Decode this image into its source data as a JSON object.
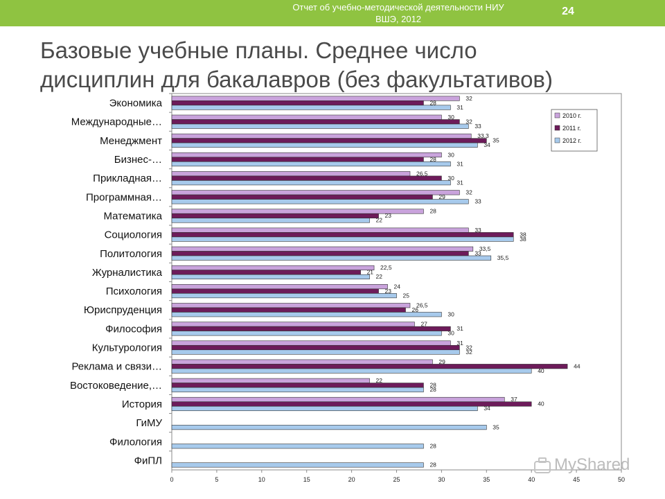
{
  "header": {
    "line1": "Отчет об учебно-методической деятельности НИУ",
    "line2": "ВШЭ, 2012",
    "page_number": "24"
  },
  "title": {
    "line1": "Базовые учебные планы. Среднее число",
    "line2": "дисциплин для бакалавров (без факультативов)"
  },
  "watermark": "MyShared",
  "colors": {
    "topbar": "#8fc341",
    "series_2010": "#c9a3dc",
    "series_2011": "#6d1b5a",
    "series_2012": "#a7caec"
  },
  "chart_data": {
    "type": "bar",
    "orientation": "horizontal",
    "categories": [
      "Экономика",
      "Международные…",
      "Менеджмент",
      "Бизнес-…",
      "Прикладная…",
      "Программная…",
      "Математика",
      "Социология",
      "Политология",
      "Журналистика",
      "Психология",
      "Юриспруденция",
      "Философия",
      "Культурология",
      "Реклама и связи…",
      "Востоковедение,…",
      "История",
      "ГиМУ",
      "Филология",
      "ФиПЛ"
    ],
    "series": [
      {
        "name": "2010 г.",
        "color": "#c9a3dc",
        "values": [
          32,
          30,
          33.3,
          30,
          26.5,
          32,
          28,
          33,
          33.5,
          22.5,
          24,
          26.5,
          27,
          31,
          29,
          22,
          37,
          null,
          null,
          null
        ]
      },
      {
        "name": "2011 г.",
        "color": "#6d1b5a",
        "values": [
          28,
          32,
          35,
          28,
          30,
          29,
          23,
          38,
          33,
          21,
          23,
          26,
          31,
          32,
          44,
          28,
          40,
          null,
          null,
          null
        ]
      },
      {
        "name": "2012 г.",
        "color": "#a7caec",
        "values": [
          31,
          33,
          34,
          31,
          31,
          33,
          22,
          38,
          35.5,
          22,
          25,
          30,
          30,
          32,
          40,
          28,
          34,
          35,
          28,
          28
        ]
      }
    ],
    "labels": [
      [
        "32",
        "30",
        "33,3",
        "30",
        "26,5",
        "32",
        "28",
        "33",
        "33,5",
        "22,5",
        "24",
        "26,5",
        "27",
        "31",
        "29",
        "22",
        "37",
        "",
        "",
        ""
      ],
      [
        "28",
        "32",
        "35",
        "28",
        "30",
        "29",
        "23",
        "38",
        "33",
        "21",
        "23",
        "26",
        "31",
        "32",
        "44",
        "28",
        "40",
        "",
        "",
        ""
      ],
      [
        "31",
        "33",
        "34",
        "31",
        "31",
        "33",
        "22",
        "38",
        "35,5",
        "22",
        "25",
        "30",
        "30",
        "32",
        "40",
        "28",
        "34",
        "35",
        "28",
        "28"
      ]
    ],
    "xlim": [
      0,
      50
    ],
    "xticks": [
      0,
      5,
      10,
      15,
      20,
      25,
      30,
      35,
      40,
      45,
      50
    ],
    "grid": false,
    "legend_position": "top-right"
  }
}
